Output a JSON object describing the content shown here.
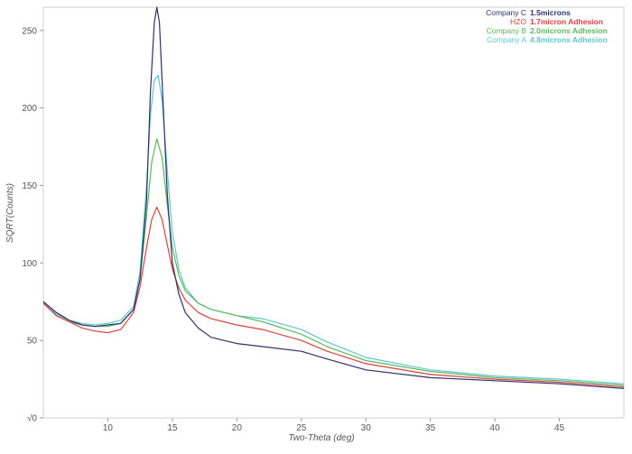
{
  "chart_data": {
    "type": "line",
    "xlabel": "Two-Theta (deg)",
    "ylabel": "SQRT(Counts)",
    "xlim": [
      5,
      50
    ],
    "ylim": [
      0,
      265
    ],
    "x_ticks": [
      "10",
      "15",
      "20",
      "25",
      "30",
      "35",
      "40",
      "45"
    ],
    "y_ticks": [
      "√0",
      "50",
      "100",
      "150",
      "200",
      "250"
    ],
    "x_tick_values": [
      10,
      15,
      20,
      25,
      30,
      35,
      40,
      45
    ],
    "y_tick_values": [
      0,
      50,
      100,
      150,
      200,
      250
    ],
    "grid": false,
    "legend_position": "top-right",
    "series": [
      {
        "name": "Company C",
        "desc": "1.5microns",
        "color": "#2e3168",
        "x": [
          5,
          6,
          7,
          8,
          9,
          10,
          11,
          12,
          12.5,
          13,
          13.3,
          13.6,
          13.8,
          14,
          14.3,
          14.6,
          15,
          15.5,
          16,
          17,
          18,
          19,
          20,
          22,
          25,
          27,
          30,
          35,
          40,
          45,
          50
        ],
        "y": [
          75,
          68,
          63,
          60,
          59,
          60,
          61,
          70,
          90,
          140,
          210,
          255,
          265,
          255,
          200,
          145,
          100,
          80,
          68,
          58,
          52,
          50,
          48,
          46,
          43,
          38,
          31,
          26,
          24,
          22,
          19
        ]
      },
      {
        "name": "HZO",
        "desc": "1.7micron Adhesion",
        "color": "#d9423f",
        "x": [
          5,
          6,
          7,
          8,
          9,
          10,
          11,
          12,
          12.5,
          13,
          13.4,
          13.8,
          14.2,
          14.6,
          15,
          15.5,
          16,
          17,
          18,
          19,
          20,
          22,
          25,
          27,
          30,
          35,
          40,
          45,
          50
        ],
        "y": [
          74,
          66,
          62,
          58,
          56,
          55,
          57,
          68,
          85,
          110,
          128,
          136,
          128,
          112,
          96,
          84,
          76,
          68,
          64,
          62,
          60,
          57,
          50,
          43,
          35,
          28,
          25,
          23,
          20
        ]
      },
      {
        "name": "Company B",
        "desc": "2.0microns Adhesion",
        "color": "#5cb85c",
        "x": [
          5,
          6,
          7,
          8,
          9,
          10,
          11,
          12,
          12.5,
          13,
          13.4,
          13.8,
          14.2,
          14.6,
          15,
          15.5,
          16,
          17,
          18,
          19,
          20,
          22,
          25,
          27,
          30,
          35,
          40,
          45,
          50
        ],
        "y": [
          74,
          66,
          62,
          60,
          59,
          59,
          61,
          70,
          90,
          130,
          165,
          180,
          168,
          138,
          110,
          92,
          82,
          74,
          70,
          68,
          66,
          62,
          54,
          46,
          37,
          30,
          26,
          24,
          21
        ]
      },
      {
        "name": "Company A",
        "desc": "4.8microns Adhesion",
        "color": "#5ec6cf",
        "x": [
          5,
          6,
          7,
          8,
          9,
          10,
          11,
          12,
          12.5,
          13,
          13.3,
          13.6,
          13.9,
          14.2,
          14.6,
          15,
          15.5,
          16,
          17,
          18,
          19,
          20,
          22,
          25,
          27,
          30,
          35,
          40,
          45,
          50
        ],
        "y": [
          75,
          67,
          63,
          61,
          60,
          61,
          63,
          72,
          95,
          150,
          195,
          218,
          221,
          205,
          160,
          120,
          96,
          84,
          74,
          70,
          68,
          66,
          64,
          57,
          49,
          39,
          31,
          27,
          25,
          22
        ]
      }
    ]
  }
}
